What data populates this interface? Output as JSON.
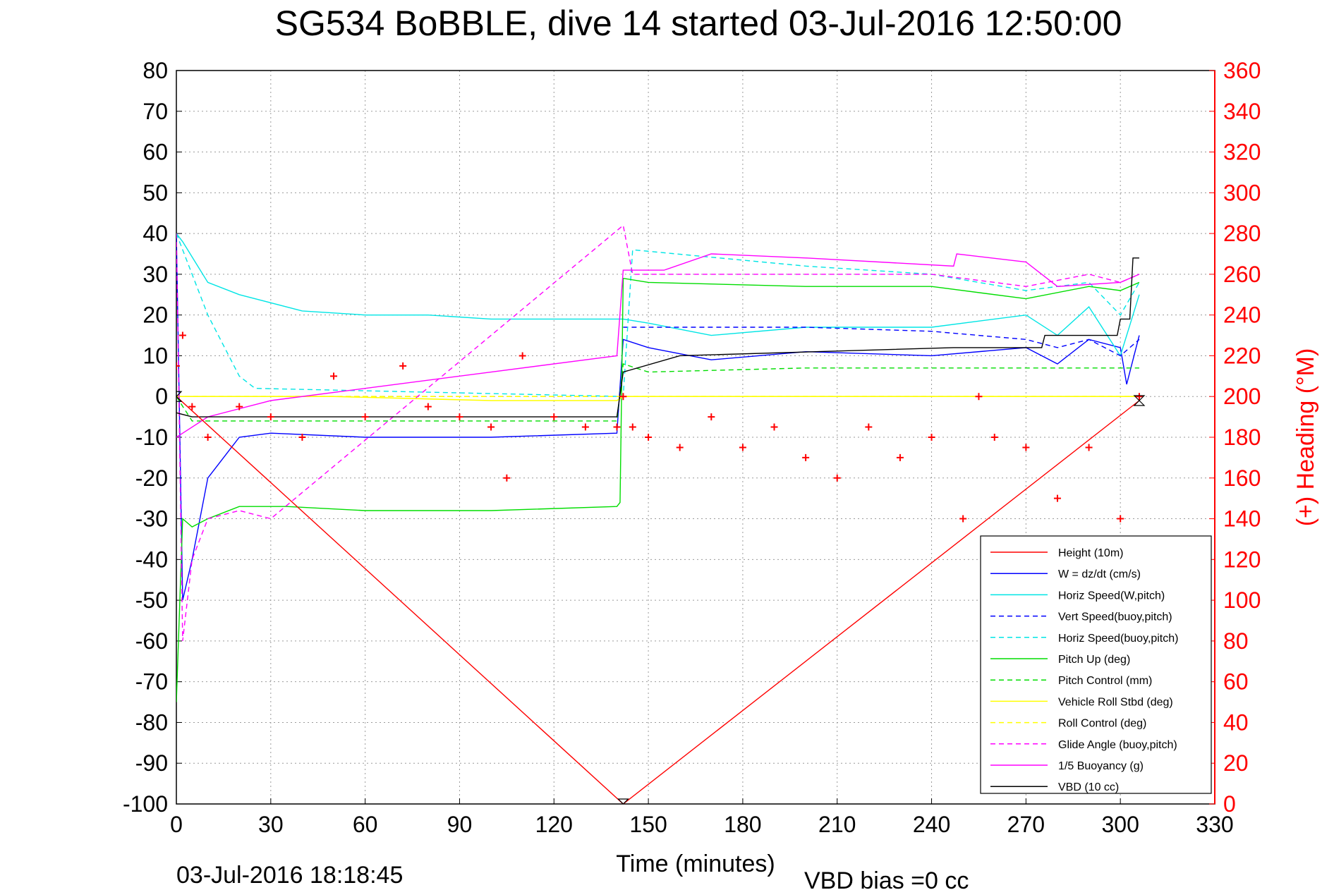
{
  "chart_data": {
    "type": "line",
    "title": "SG534 BoBBLE, dive 14 started 03-Jul-2016 12:50:00",
    "xlabel": "Time (minutes)",
    "ylabel_right": "(+) Heading (°M)",
    "footer_left": "03-Jul-2016 18:18:45",
    "footer_right": "VBD bias =0 cc",
    "xlim": [
      0,
      330
    ],
    "ylim": [
      -100,
      80
    ],
    "ylim_right": [
      0,
      360
    ],
    "x_ticks": [
      "0",
      "30",
      "60",
      "90",
      "120",
      "150",
      "180",
      "210",
      "240",
      "270",
      "300",
      "330"
    ],
    "y_ticks": [
      "-100",
      "-90",
      "-80",
      "-70",
      "-60",
      "-50",
      "-40",
      "-30",
      "-20",
      "-10",
      "0",
      "10",
      "20",
      "30",
      "40",
      "50",
      "60",
      "70",
      "80"
    ],
    "y_ticks_right": [
      "0",
      "20",
      "40",
      "60",
      "80",
      "100",
      "120",
      "140",
      "160",
      "180",
      "200",
      "220",
      "240",
      "260",
      "280",
      "300",
      "320",
      "340",
      "360"
    ],
    "grid": true,
    "legend_position": "bottom-right",
    "colors": {
      "height": "#ff0000",
      "w": "#0000ff",
      "horiz": "#00e5e5",
      "pitch": "#00dd00",
      "roll": "#ffff00",
      "glide": "#ff00ff",
      "buoy": "#ff00ff",
      "vbd": "#000000",
      "heading": "#ff0000"
    },
    "series": [
      {
        "name": "Height (10m)",
        "style": "solid",
        "color": "#ff0000",
        "x": [
          0,
          142,
          306
        ],
        "y": [
          0,
          -100,
          -1
        ]
      },
      {
        "name": "W = dz/dt (cm/s)",
        "style": "solid",
        "color": "#0000ff",
        "x": [
          0,
          2,
          5,
          10,
          20,
          30,
          60,
          100,
          140,
          142,
          150,
          170,
          200,
          240,
          270,
          280,
          290,
          300,
          302,
          306
        ],
        "y": [
          40,
          -50,
          -40,
          -20,
          -10,
          -9,
          -10,
          -10,
          -9,
          14,
          12,
          9,
          11,
          10,
          12,
          8,
          14,
          12,
          3,
          15
        ]
      },
      {
        "name": "Horiz Speed(W,pitch)",
        "style": "solid",
        "color": "#00e5e5",
        "x": [
          0,
          2,
          10,
          20,
          40,
          60,
          80,
          100,
          120,
          140,
          142,
          150,
          170,
          200,
          240,
          270,
          280,
          290,
          300,
          306
        ],
        "y": [
          40,
          38,
          28,
          25,
          21,
          20,
          20,
          19,
          19,
          19,
          19,
          18,
          15,
          17,
          17,
          20,
          15,
          22,
          10,
          25
        ]
      },
      {
        "name": "Vert Speed(buoy,pitch)",
        "style": "dashed",
        "color": "#0000ff",
        "x": [
          142,
          150,
          200,
          240,
          270,
          280,
          290,
          300,
          306
        ],
        "y": [
          17,
          17,
          17,
          16,
          14,
          12,
          14,
          10,
          14
        ]
      },
      {
        "name": "Horiz Speed(buoy,pitch)",
        "style": "dashed",
        "color": "#00e5e5",
        "x": [
          0,
          5,
          10,
          20,
          25,
          142,
          145,
          200,
          240,
          270,
          290,
          300,
          306
        ],
        "y": [
          40,
          30,
          20,
          5,
          2,
          0,
          36,
          32,
          30,
          26,
          28,
          20,
          28
        ]
      },
      {
        "name": "Pitch Up (deg)",
        "style": "solid",
        "color": "#00dd00",
        "x": [
          0,
          2,
          5,
          10,
          20,
          35,
          60,
          100,
          140,
          141,
          142,
          150,
          200,
          240,
          270,
          290,
          300,
          306
        ],
        "y": [
          -75,
          -30,
          -32,
          -30,
          -27,
          -27,
          -28,
          -28,
          -27,
          -26,
          29,
          28,
          27,
          27,
          24,
          27,
          26,
          28
        ]
      },
      {
        "name": "Pitch Control (mm)",
        "style": "dashed",
        "color": "#00dd00",
        "x": [
          0,
          5,
          20,
          60,
          100,
          140,
          142,
          150,
          200,
          240,
          270,
          290,
          306
        ],
        "y": [
          0,
          -6,
          -6,
          -6,
          -6,
          -6,
          8,
          6,
          7,
          7,
          7,
          7,
          7
        ]
      },
      {
        "name": "Vehicle Roll Stbd (deg)",
        "style": "solid",
        "color": "#ffff00",
        "x": [
          0,
          50,
          100,
          140,
          142,
          200,
          260,
          290,
          306
        ],
        "y": [
          0,
          0,
          -1,
          -1,
          0,
          0,
          0,
          0,
          0
        ]
      },
      {
        "name": "Roll Control (deg)",
        "style": "dashed",
        "color": "#ffff00",
        "x": [
          0,
          306
        ],
        "y": [
          0,
          0
        ]
      },
      {
        "name": "Glide Angle (buoy,pitch)",
        "style": "dashed",
        "color": "#ff00ff",
        "x": [
          0,
          2,
          5,
          10,
          20,
          30,
          142,
          145,
          200,
          240,
          270,
          290,
          300,
          306
        ],
        "y": [
          40,
          -60,
          -40,
          -30,
          -28,
          -30,
          42,
          30,
          30,
          30,
          27,
          30,
          28,
          30
        ]
      },
      {
        "name": "1/5 Buoyancy (g)",
        "style": "solid",
        "color": "#ff00ff",
        "x": [
          0,
          10,
          30,
          60,
          100,
          140,
          142,
          155,
          170,
          200,
          247,
          248,
          270,
          280,
          300,
          306
        ],
        "y": [
          -10,
          -5,
          -1,
          2,
          6,
          10,
          31,
          31,
          35,
          34,
          32,
          35,
          33,
          27,
          28,
          30
        ]
      },
      {
        "name": "VBD (10 cc)",
        "style": "solid",
        "color": "#000000",
        "x": [
          0,
          5,
          140,
          142,
          160,
          247,
          275,
          276,
          299,
          300,
          303,
          304,
          306
        ],
        "y": [
          -4,
          -5,
          -5,
          6,
          10,
          12,
          12,
          15,
          15,
          19,
          19,
          34,
          34
        ]
      }
    ],
    "heading": {
      "name": "(+) Heading",
      "axis": "right",
      "color": "#ff0000",
      "x": [
        0,
        2,
        5,
        10,
        20,
        30,
        40,
        50,
        60,
        72,
        80,
        90,
        100,
        105,
        110,
        120,
        130,
        140,
        142,
        145,
        150,
        160,
        170,
        180,
        190,
        200,
        210,
        220,
        230,
        240,
        250,
        255,
        260,
        270,
        280,
        290,
        300,
        306
      ],
      "y": [
        215,
        230,
        195,
        180,
        195,
        190,
        180,
        210,
        190,
        215,
        195,
        190,
        185,
        160,
        220,
        190,
        185,
        185,
        200,
        185,
        180,
        175,
        190,
        175,
        185,
        170,
        160,
        185,
        170,
        180,
        140,
        200,
        180,
        175,
        150,
        175,
        140,
        200
      ]
    }
  }
}
